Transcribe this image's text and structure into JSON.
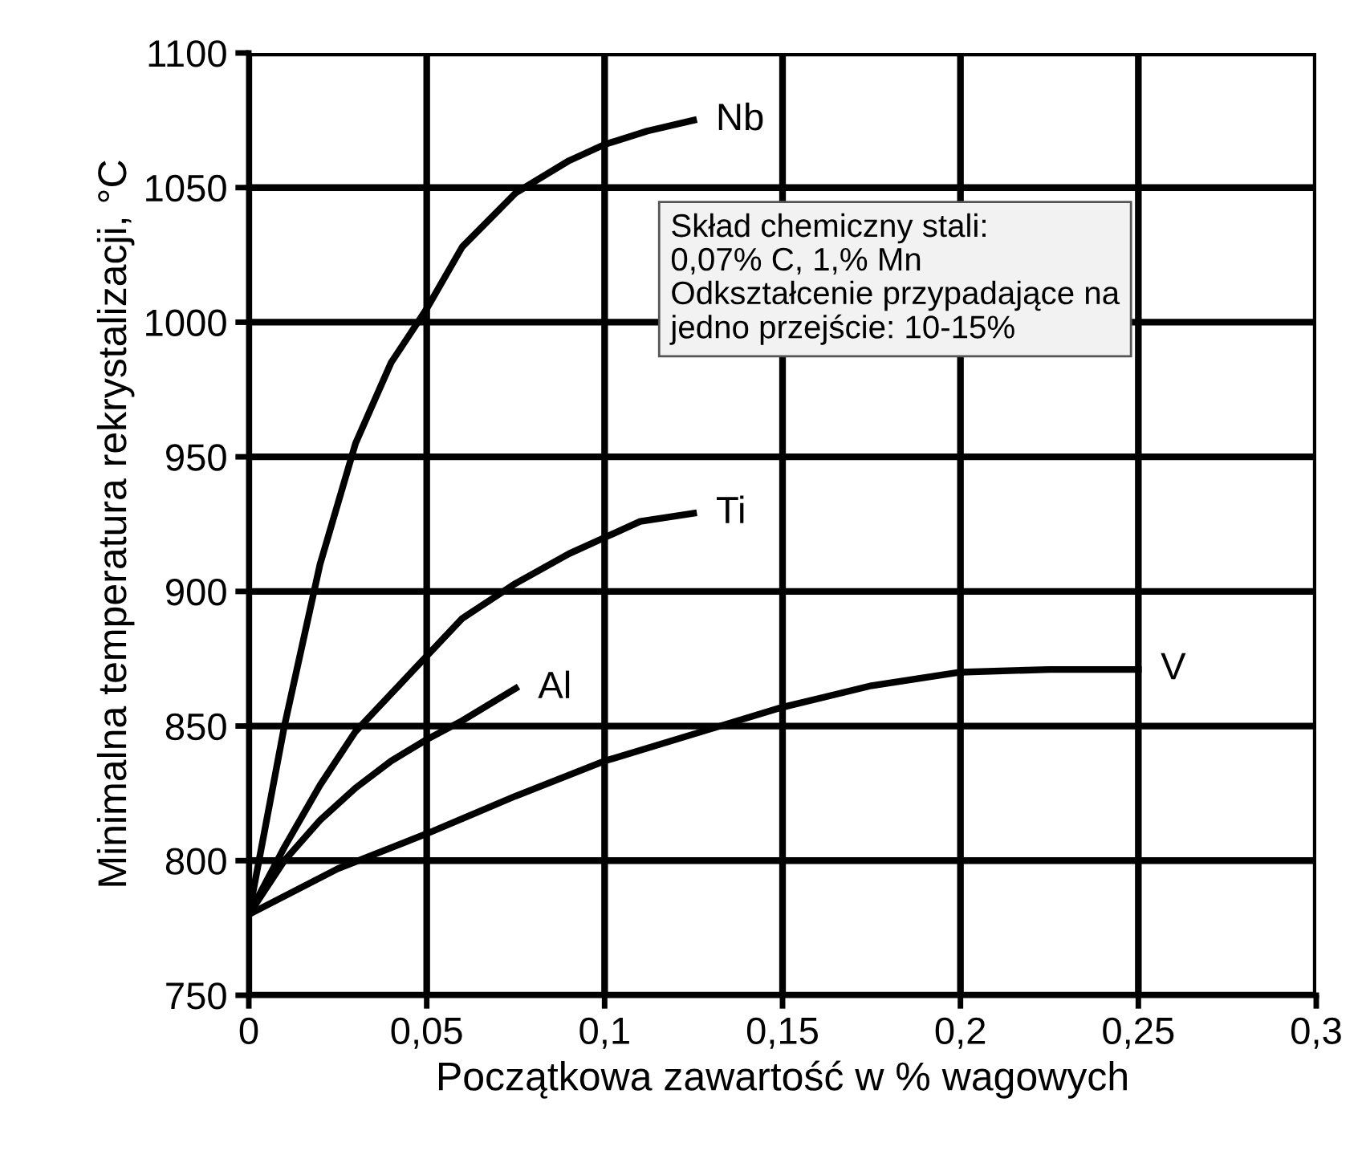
{
  "chart_data": {
    "type": "line",
    "xlabel": "Początkowa zawartość w % wagowych",
    "ylabel": "Minimalna temperatura rekrystalizacji, °C",
    "xlim": [
      0,
      0.3
    ],
    "xticks": [
      0,
      {
        "value": 0.05,
        "label": "0,05"
      },
      {
        "value": 0.1,
        "label": "0,1"
      },
      {
        "value": 0.15,
        "label": "0,15"
      },
      {
        "value": 0.2,
        "label": "0,2"
      },
      {
        "value": 0.25,
        "label": "0,25"
      },
      {
        "value": 0.3,
        "label": "0,3"
      }
    ],
    "ylim": [
      750,
      1100
    ],
    "yticks": [
      750,
      800,
      850,
      900,
      950,
      1000,
      1050,
      1100
    ],
    "grid": true,
    "legend": false,
    "marker": "none",
    "line_style": "solid",
    "series": [
      {
        "name": "Nb",
        "color": "#000000",
        "x": [
          0,
          0.01,
          0.02,
          0.03,
          0.04,
          0.05,
          0.06,
          0.075,
          0.09,
          0.1,
          0.112,
          0.125
        ],
        "values": [
          780,
          850,
          910,
          955,
          985,
          1005,
          1028,
          1048,
          1060,
          1066,
          1071,
          1075
        ]
      },
      {
        "name": "Ti",
        "color": "#000000",
        "x": [
          0,
          0.01,
          0.02,
          0.03,
          0.04,
          0.05,
          0.06,
          0.075,
          0.09,
          0.1,
          0.11,
          0.125
        ],
        "values": [
          780,
          805,
          828,
          848,
          862,
          876,
          890,
          903,
          914,
          920,
          926,
          929
        ]
      },
      {
        "name": "Al",
        "color": "#000000",
        "x": [
          0,
          0.01,
          0.02,
          0.03,
          0.04,
          0.05,
          0.06,
          0.075
        ],
        "values": [
          780,
          800,
          815,
          827,
          837,
          845,
          852,
          864
        ]
      },
      {
        "name": "V",
        "color": "#000000",
        "x": [
          0,
          0.025,
          0.05,
          0.075,
          0.1,
          0.125,
          0.15,
          0.175,
          0.2,
          0.225,
          0.25
        ],
        "values": [
          780,
          797,
          810,
          824,
          837,
          847,
          857,
          865,
          870,
          871,
          871
        ]
      }
    ],
    "annotations": [
      "Skład chemiczny stali:\n0,07% C, 1,% Mn\nOdkształcenie przypadające na\njedno przejście: 10-15%"
    ]
  }
}
